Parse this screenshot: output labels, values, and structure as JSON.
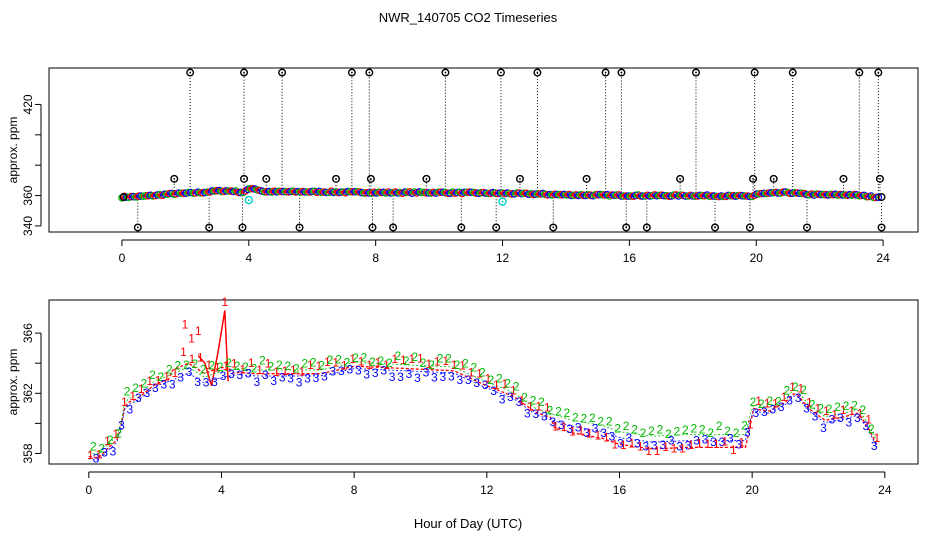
{
  "title": "NWR_140705  CO2 Timeseries",
  "xlabel": "Hour of Day (UTC)",
  "colors": {
    "ch1": "#ff0000",
    "ch2": "#00bb00",
    "ch3": "#0000ff",
    "flag": "#000000",
    "cal": "#00cccc"
  },
  "chart_data": [
    {
      "type": "scatter",
      "name": "top-panel",
      "ylabel": "approx. ppm",
      "xlim": [
        -2.3,
        25.1
      ],
      "ylim": [
        336,
        444
      ],
      "xticks": [
        0,
        4,
        8,
        12,
        16,
        20,
        24
      ],
      "yticks": [
        340,
        360,
        380,
        400,
        420
      ],
      "ytick_labels": [
        "340",
        "360",
        "",
        "",
        "420"
      ],
      "baseline": [
        [
          0,
          359
        ],
        [
          0.5,
          359.3
        ],
        [
          1,
          360
        ],
        [
          1.5,
          361
        ],
        [
          2,
          361.5
        ],
        [
          2.5,
          362
        ],
        [
          3,
          363
        ],
        [
          3.5,
          363
        ],
        [
          3.8,
          362
        ],
        [
          4.1,
          365
        ],
        [
          4.5,
          362.5
        ],
        [
          6,
          362.5
        ],
        [
          8,
          362
        ],
        [
          10,
          362
        ],
        [
          12,
          361.5
        ],
        [
          13,
          361
        ],
        [
          14,
          360.5
        ],
        [
          16,
          360
        ],
        [
          18,
          360
        ],
        [
          19.9,
          359.5
        ],
        [
          20,
          361
        ],
        [
          21,
          362
        ],
        [
          21.5,
          361
        ],
        [
          22,
          360.5
        ],
        [
          23,
          360.5
        ],
        [
          23.8,
          359
        ]
      ],
      "flag_high_x": [
        2.15,
        3.85,
        5.05,
        7.25,
        7.8,
        10.2,
        11.95,
        13.1,
        15.25,
        15.75,
        18.1,
        19.95,
        21.15,
        23.25,
        23.85
      ],
      "flag_high_y": 441,
      "flag_mid_x": [
        1.65,
        3.85,
        4.55,
        6.75,
        7.85,
        9.6,
        12.55,
        14.65,
        17.6,
        19.9,
        20.55,
        22.75,
        23.9
      ],
      "flag_mid_y": 371,
      "flag_low_x": [
        0.5,
        2.75,
        3.8,
        5.6,
        7.9,
        8.55,
        10.7,
        11.8,
        13.6,
        15.9,
        16.55,
        18.7,
        19.8,
        21.6,
        23.95
      ],
      "flag_low_y": 339,
      "cal_points": [
        [
          4.0,
          357
        ],
        [
          12.0,
          356
        ]
      ]
    },
    {
      "type": "line",
      "name": "bottom-panel",
      "ylabel": "approx. ppm",
      "xlim": [
        -1.2,
        25.0
      ],
      "ylim": [
        357.3,
        368.2
      ],
      "xticks": [
        0,
        4,
        8,
        12,
        16,
        20,
        24
      ],
      "yticks": [
        358,
        362,
        366
      ],
      "yminor": [
        360,
        364
      ],
      "series_labels": [
        "1",
        "2",
        "3"
      ],
      "profile": [
        [
          0,
          357.8
        ],
        [
          0.3,
          357.7
        ],
        [
          0.6,
          358.4
        ],
        [
          0.9,
          359
        ],
        [
          1.1,
          361.3
        ],
        [
          1.5,
          361.7
        ],
        [
          2,
          362.6
        ],
        [
          2.5,
          363
        ],
        [
          3,
          363.5
        ],
        [
          3.5,
          362.8
        ],
        [
          3.7,
          363
        ],
        [
          4,
          363.2
        ],
        [
          4.5,
          363.4
        ],
        [
          5,
          363.3
        ],
        [
          6,
          363.3
        ],
        [
          7,
          363.3
        ],
        [
          8,
          363.8
        ],
        [
          9,
          363.7
        ],
        [
          10,
          363.6
        ],
        [
          11,
          363.5
        ],
        [
          12,
          362.5
        ],
        [
          12.8,
          361.8
        ],
        [
          13.5,
          360.7
        ],
        [
          14.5,
          360
        ],
        [
          15.5,
          359.6
        ],
        [
          16,
          359.2
        ],
        [
          17,
          358.9
        ],
        [
          18,
          359
        ],
        [
          19,
          359
        ],
        [
          19.8,
          359
        ],
        [
          20,
          361
        ],
        [
          20.5,
          360.8
        ],
        [
          21,
          361.4
        ],
        [
          21.3,
          362.1
        ],
        [
          21.7,
          361
        ],
        [
          22.2,
          360.2
        ],
        [
          22.7,
          360.4
        ],
        [
          23.2,
          360.7
        ],
        [
          23.5,
          359.7
        ],
        [
          23.8,
          358.4
        ]
      ],
      "red_spike": [
        [
          3.3,
          364.5
        ],
        [
          3.5,
          364.0
        ],
        [
          3.7,
          362.5
        ],
        [
          3.9,
          364.8
        ],
        [
          4.1,
          367.5
        ],
        [
          4.2,
          362.8
        ]
      ],
      "red_high_points": [
        [
          3.1,
          365.6
        ],
        [
          3.3,
          366.1
        ],
        [
          2.9,
          366.5
        ],
        [
          4.1,
          368.0
        ]
      ]
    }
  ]
}
